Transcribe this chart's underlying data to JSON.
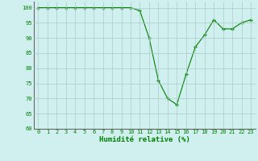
{
  "x": [
    0,
    1,
    2,
    3,
    4,
    5,
    6,
    7,
    8,
    9,
    10,
    11,
    12,
    13,
    14,
    15,
    16,
    17,
    18,
    19,
    20,
    21,
    22,
    23
  ],
  "y": [
    100,
    100,
    100,
    100,
    100,
    100,
    100,
    100,
    100,
    100,
    100,
    99,
    90,
    76,
    70,
    68,
    78,
    87,
    91,
    96,
    93,
    93,
    95,
    96
  ],
  "line_color": "#008000",
  "marker": "+",
  "bg_color": "#d0f0f0",
  "grid_color": "#b0c8c8",
  "xlabel": "Humidité relative (%)",
  "xlabel_color": "#008000",
  "tick_color": "#008000",
  "ylim": [
    60,
    102
  ],
  "xlim": [
    -0.5,
    23.5
  ],
  "yticks": [
    60,
    65,
    70,
    75,
    80,
    85,
    90,
    95,
    100
  ],
  "xticks": [
    0,
    1,
    2,
    3,
    4,
    5,
    6,
    7,
    8,
    9,
    10,
    11,
    12,
    13,
    14,
    15,
    16,
    17,
    18,
    19,
    20,
    21,
    22,
    23
  ],
  "tick_fontsize": 5.0,
  "xlabel_fontsize": 6.5
}
